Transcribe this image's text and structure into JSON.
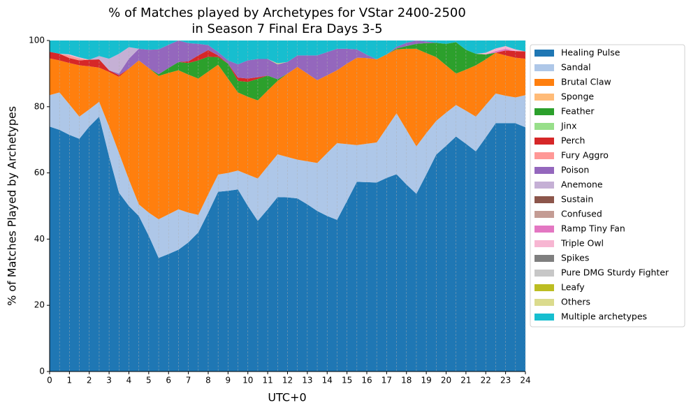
{
  "chart_data": {
    "type": "stacked_area",
    "title": [
      "% of Matches played by Archetypes for VStar 2400-2500",
      "in Season 7 Final Era Days 3-5"
    ],
    "x_label": "UTC+0",
    "y_label": "% of Matches Played by Archetypes",
    "x": [
      0,
      0.5,
      1,
      1.5,
      2,
      2.5,
      3,
      3.5,
      4,
      4.5,
      5,
      5.5,
      6,
      6.5,
      7,
      7.5,
      8,
      8.5,
      9,
      9.5,
      10,
      10.5,
      11,
      11.5,
      12,
      12.5,
      13,
      13.5,
      14,
      14.5,
      15,
      15.5,
      16,
      16.5,
      17,
      17.5,
      18,
      18.5,
      19,
      19.5,
      20,
      20.5,
      21,
      21.5,
      22,
      22.5,
      23,
      23.5,
      24
    ],
    "xlim": [
      0,
      24
    ],
    "xticks": [
      0,
      1,
      2,
      3,
      4,
      5,
      6,
      7,
      8,
      9,
      10,
      11,
      12,
      13,
      14,
      15,
      16,
      17,
      18,
      19,
      20,
      21,
      22,
      23,
      24
    ],
    "ylim": [
      0,
      100
    ],
    "yticks": [
      0,
      20,
      40,
      60,
      80,
      100
    ],
    "grid": true,
    "legend": "outside-right",
    "series": [
      {
        "name": "Healing Pulse",
        "color": "#1f77b4",
        "values": [
          74,
          73,
          71.5,
          70.3,
          74,
          77,
          65,
          54,
          50,
          47,
          41,
          34.3,
          35.5,
          36.8,
          39,
          42,
          48,
          54.3,
          54.6,
          55,
          50,
          45.5,
          49,
          52.7,
          52.6,
          52.3,
          50.5,
          48.5,
          47,
          45.8,
          51.5,
          57.3,
          57.2,
          57.1,
          58.5,
          59.6,
          56.5,
          53.7,
          59.5,
          65.5,
          68.2,
          71,
          68.8,
          66.5,
          70.7,
          75,
          75,
          75,
          73.8
        ]
      },
      {
        "name": "Sandal",
        "color": "#aec7e8",
        "values": [
          9.5,
          11.3,
          9.2,
          6.7,
          5.2,
          4.5,
          9,
          12,
          8,
          3.5,
          7,
          11.7,
          12,
          12.2,
          9,
          5.3,
          5.5,
          5.2,
          5.4,
          5.7,
          9.5,
          12.8,
          13,
          12.9,
          12.2,
          11.7,
          13,
          14.5,
          19,
          23.2,
          17.2,
          11.1,
          11.6,
          12.1,
          15.1,
          18.4,
          16.5,
          14.3,
          12.5,
          10.2,
          10,
          9.5,
          10,
          10.5,
          9.8,
          9,
          8.3,
          7.8,
          9.7
        ]
      },
      {
        "name": "Brutal Claw",
        "color": "#ff7f0e",
        "values": [
          11.1,
          9.7,
          12.5,
          15.5,
          13,
          10.3,
          16.5,
          23,
          33.5,
          43.5,
          43.7,
          43.3,
          42.7,
          42,
          41.7,
          41.2,
          37.1,
          33.2,
          28.5,
          23.6,
          23.5,
          23.6,
          22.9,
          22.2,
          25.2,
          28,
          26.5,
          25,
          23.5,
          22,
          24.3,
          26.4,
          25.9,
          25.1,
          22.2,
          19.3,
          24.5,
          29.5,
          24.2,
          19.3,
          14.3,
          9.5,
          12.4,
          15.5,
          13.8,
          12.3,
          12.2,
          12,
          11
        ]
      },
      {
        "name": "Sponge",
        "color": "#ffbb78",
        "values": [
          0,
          0,
          0,
          0,
          0,
          0,
          0,
          0,
          0,
          0,
          0,
          0,
          0,
          0,
          0,
          0,
          0,
          0,
          0,
          0,
          0,
          0,
          0,
          0,
          0,
          0,
          0,
          0,
          0,
          0,
          0,
          0,
          0,
          0,
          0,
          0,
          0,
          0,
          0,
          0,
          0,
          0,
          0,
          0,
          0,
          0,
          0,
          0,
          0
        ]
      },
      {
        "name": "Feather",
        "color": "#2ca02c",
        "values": [
          0,
          0,
          0,
          0,
          0,
          0,
          0,
          0,
          0,
          0,
          0,
          0.5,
          1.5,
          2.5,
          3.5,
          5.5,
          4.5,
          2.3,
          4.5,
          3.5,
          4.5,
          6.5,
          4.5,
          0.5,
          0,
          0,
          0,
          0,
          0,
          0,
          0,
          0,
          0,
          0,
          0,
          0.3,
          0.8,
          1.5,
          3,
          4.3,
          6.5,
          9.5,
          6,
          3.5,
          1.5,
          0,
          0,
          0,
          0
        ]
      },
      {
        "name": "Jinx",
        "color": "#98df8a",
        "values": [
          0,
          0,
          0,
          0,
          0,
          0,
          0,
          0,
          0,
          0,
          0,
          0,
          0,
          0,
          0,
          0,
          0,
          0,
          0,
          0,
          0,
          0,
          0,
          0,
          0,
          0,
          0,
          0,
          0,
          0,
          0,
          0,
          0,
          0,
          0,
          0,
          0,
          0,
          0,
          0,
          0,
          0,
          0,
          0,
          0,
          0,
          0,
          0,
          0
        ]
      },
      {
        "name": "Perch",
        "color": "#d62728",
        "values": [
          2,
          2,
          1.5,
          1.5,
          2,
          2.5,
          0.5,
          0.5,
          0,
          0,
          0,
          0,
          0,
          0,
          0.5,
          1.5,
          2,
          0.5,
          0,
          1,
          1,
          0.5,
          0,
          0,
          0,
          0,
          0,
          0,
          0,
          0,
          0,
          0,
          0,
          0,
          0,
          0,
          0,
          0,
          0,
          0,
          0,
          0,
          0,
          0,
          0,
          0,
          1.5,
          2,
          2.2
        ]
      },
      {
        "name": "Fury Aggro",
        "color": "#ff9896",
        "values": [
          0,
          0,
          0.8,
          0.6,
          0,
          0,
          0,
          0,
          0,
          0,
          0,
          0,
          0,
          0,
          0,
          0,
          0,
          0,
          0,
          0,
          0,
          0,
          0,
          0,
          0,
          0,
          0,
          0,
          0,
          0,
          0,
          0,
          0,
          0,
          0,
          0,
          0,
          0,
          0,
          0,
          0,
          0,
          0,
          0,
          0,
          0,
          0,
          0,
          0
        ]
      },
      {
        "name": "Poison",
        "color": "#9467bd",
        "values": [
          0,
          0,
          0,
          0,
          0,
          0,
          0,
          0.5,
          3,
          3.5,
          5.5,
          7.5,
          7,
          6.5,
          5.5,
          3.5,
          1.5,
          1,
          1,
          4,
          5.5,
          5.5,
          5,
          4.5,
          3.5,
          3.5,
          5.5,
          7.5,
          7,
          6.5,
          4.5,
          2.5,
          1,
          0,
          0,
          0.5,
          1,
          1,
          0.5,
          0,
          0,
          0,
          0,
          0,
          0,
          0,
          0,
          0,
          0
        ]
      },
      {
        "name": "Anemone",
        "color": "#c5b0d5",
        "values": [
          0,
          0,
          0,
          0,
          0,
          1,
          3.5,
          6,
          3.5,
          0,
          0,
          0,
          0,
          0,
          0,
          0,
          0,
          0,
          0,
          0,
          0,
          0,
          0,
          0,
          0,
          0,
          0,
          0,
          0,
          0,
          0,
          0,
          0,
          0,
          0,
          0,
          0,
          0,
          0,
          0,
          0,
          0,
          0,
          0,
          0,
          0,
          0,
          0,
          0
        ]
      },
      {
        "name": "Sustain",
        "color": "#8c564b",
        "values": [
          0,
          0,
          0,
          0,
          0,
          0,
          0,
          0,
          0,
          0,
          0,
          0,
          0,
          0,
          0,
          0,
          0,
          0,
          0,
          0,
          0,
          0,
          0,
          0,
          0,
          0,
          0,
          0,
          0,
          0,
          0,
          0,
          0,
          0,
          0,
          0,
          0,
          0,
          0,
          0,
          0,
          0,
          0,
          0,
          0,
          0,
          0,
          0,
          0
        ]
      },
      {
        "name": "Confused",
        "color": "#c49c94",
        "values": [
          0,
          0,
          0,
          0,
          0,
          0,
          0,
          0,
          0,
          0,
          0,
          0,
          0,
          0,
          0,
          0,
          0,
          0,
          0,
          0,
          0,
          0,
          0,
          0,
          0,
          0,
          0,
          0,
          0,
          0,
          0,
          0,
          0,
          0,
          0,
          0,
          0,
          0,
          0,
          0,
          0,
          0,
          0,
          0,
          0,
          0,
          0,
          0,
          0
        ]
      },
      {
        "name": "Ramp Tiny Fan",
        "color": "#e377c2",
        "values": [
          0,
          0,
          0,
          0,
          0,
          0,
          0,
          0,
          0,
          0,
          0,
          0,
          0,
          0,
          0,
          0,
          0,
          0,
          0,
          0,
          0,
          0,
          0,
          0,
          0,
          0,
          0,
          0,
          0,
          0,
          0,
          0,
          0,
          0,
          0,
          0,
          0,
          0,
          0,
          0,
          0,
          0,
          0,
          0,
          0,
          0.5,
          0.5,
          0,
          0
        ]
      },
      {
        "name": "Triple Owl",
        "color": "#f7b6d2",
        "values": [
          0,
          0,
          0.3,
          0.3,
          0,
          0,
          0,
          0,
          0,
          0,
          0,
          0,
          0,
          0,
          0,
          0,
          0,
          0,
          0,
          0,
          0,
          0,
          0,
          0,
          0,
          0,
          0,
          0,
          0,
          0,
          0,
          0,
          0,
          0,
          0,
          0,
          0,
          0,
          0,
          0,
          0,
          0,
          0,
          0,
          0.5,
          0.8,
          0.8,
          0.5,
          0
        ]
      },
      {
        "name": "Spikes",
        "color": "#7f7f7f",
        "values": [
          0,
          0,
          0,
          0,
          0,
          0,
          0,
          0,
          0,
          0,
          0,
          0,
          0,
          0,
          0,
          0,
          0,
          0,
          0,
          0,
          0,
          0,
          0,
          0,
          0,
          0,
          0,
          0,
          0,
          0,
          0,
          0,
          0,
          0,
          0,
          0,
          0,
          0,
          0,
          0,
          0,
          0,
          0,
          0,
          0,
          0,
          0,
          0,
          0
        ]
      },
      {
        "name": "Pure DMG Sturdy Fighter",
        "color": "#c7c7c7",
        "values": [
          0,
          0,
          0,
          0,
          0,
          0,
          0,
          0,
          0,
          0,
          0,
          0,
          0,
          0,
          0,
          0,
          0,
          0,
          0,
          0,
          0,
          0,
          0,
          0,
          0,
          0,
          0,
          0,
          0,
          0,
          0,
          0,
          0,
          0,
          0,
          0,
          0,
          0,
          0,
          0,
          0,
          0,
          0,
          0,
          0,
          0,
          0,
          0,
          0
        ]
      },
      {
        "name": "Leafy",
        "color": "#bcbd22",
        "values": [
          0,
          0,
          0,
          0,
          0,
          0,
          0,
          0,
          0,
          0,
          0,
          0,
          0,
          0,
          0,
          0,
          0,
          0,
          0,
          0,
          0,
          0,
          0,
          0,
          0,
          0,
          0,
          0,
          0,
          0,
          0,
          0,
          0,
          0,
          0,
          0,
          0,
          0,
          0,
          0,
          0,
          0,
          0,
          0,
          0,
          0,
          0,
          0,
          0
        ]
      },
      {
        "name": "Others",
        "color": "#dbdb8d",
        "values": [
          0,
          0,
          0,
          0,
          0,
          0,
          0,
          0,
          0,
          0,
          0,
          0,
          0,
          0,
          0,
          0,
          0,
          0,
          0,
          0,
          0,
          0,
          0,
          0.3,
          0,
          0,
          0,
          0,
          0,
          0,
          0,
          0,
          0,
          0,
          0,
          0,
          0,
          0,
          0,
          0,
          0,
          0,
          0,
          0,
          0,
          0,
          0,
          0,
          0
        ]
      },
      {
        "name": "Multiple archetypes",
        "color": "#17becf",
        "values": [
          3.4,
          4,
          4.2,
          5.1,
          5.8,
          4.7,
          5.5,
          4,
          2,
          2.5,
          2.8,
          2.7,
          1.3,
          0,
          0.8,
          1,
          1.4,
          3.5,
          6,
          7.2,
          6,
          5.6,
          5.6,
          6.9,
          6.5,
          4.5,
          4.5,
          4.5,
          3.5,
          2.5,
          2.5,
          2.7,
          4.3,
          5.7,
          4.2,
          1.9,
          0.7,
          0,
          0.3,
          0.7,
          1,
          0.5,
          2.8,
          4,
          3.7,
          2.4,
          1.7,
          2.7,
          3.3
        ]
      }
    ]
  }
}
